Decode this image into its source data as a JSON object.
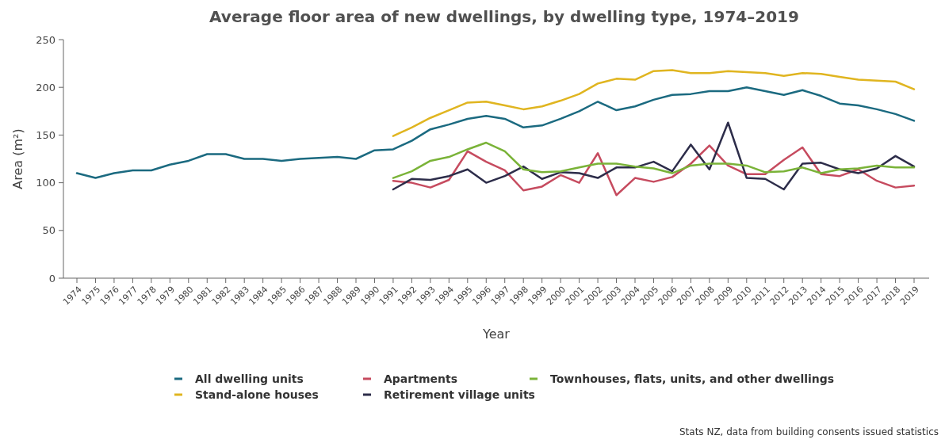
{
  "chart_data": {
    "type": "line",
    "title": "Average floor area of new dwellings, by dwelling type, 1974–2019",
    "xlabel": "Year",
    "ylabel": "Area (m²)",
    "annotations": [
      "Stats NZ, data from building consents issued statistics"
    ],
    "categories": [
      "1974",
      "1975",
      "1976",
      "1977",
      "1978",
      "1979",
      "1980",
      "1981",
      "1982",
      "1983",
      "1984",
      "1985",
      "1986",
      "1987",
      "1988",
      "1989",
      "1990",
      "1991",
      "1992",
      "1993",
      "1994",
      "1995",
      "1996",
      "1997",
      "1998",
      "1999",
      "2000",
      "2001",
      "2002",
      "2003",
      "2004",
      "2005",
      "2006",
      "2007",
      "2008",
      "2009",
      "2010",
      "2011",
      "2012",
      "2013",
      "2014",
      "2015",
      "2016",
      "2017",
      "2018",
      "2019"
    ],
    "ylim": [
      0,
      250
    ],
    "yticks": [
      0,
      50,
      100,
      150,
      200,
      250
    ],
    "grid": false,
    "legend": "bottom",
    "marker": "none",
    "line_style": "solid",
    "series": [
      {
        "name": "All dwelling units",
        "color": "#1b6a80",
        "values": [
          110,
          105,
          110,
          113,
          113,
          119,
          123,
          130,
          130,
          125,
          125,
          123,
          125,
          126,
          127,
          125,
          134,
          135,
          144,
          156,
          161,
          167,
          170,
          167,
          158,
          160,
          167,
          175,
          185,
          176,
          180,
          187,
          192,
          193,
          196,
          196,
          200,
          196,
          192,
          197,
          191,
          183,
          181,
          177,
          172,
          165
        ]
      },
      {
        "name": "Stand-alone houses",
        "color": "#e0b520",
        "values": [
          null,
          null,
          null,
          null,
          null,
          null,
          null,
          null,
          null,
          null,
          null,
          null,
          null,
          null,
          null,
          null,
          null,
          149,
          158,
          168,
          176,
          184,
          185,
          181,
          177,
          180,
          186,
          193,
          204,
          209,
          208,
          217,
          218,
          215,
          215,
          217,
          216,
          215,
          212,
          215,
          214,
          211,
          208,
          207,
          206,
          198
        ]
      },
      {
        "name": "Apartments",
        "color": "#c64b5f",
        "values": [
          null,
          null,
          null,
          null,
          null,
          null,
          null,
          null,
          null,
          null,
          null,
          null,
          null,
          null,
          null,
          null,
          null,
          102,
          100,
          95,
          103,
          133,
          122,
          113,
          92,
          96,
          108,
          100,
          131,
          87,
          105,
          101,
          106,
          120,
          139,
          118,
          109,
          109,
          124,
          137,
          109,
          107,
          114,
          102,
          95,
          97
        ]
      },
      {
        "name": "Retirement village units",
        "color": "#2d2d4a",
        "values": [
          null,
          null,
          null,
          null,
          null,
          null,
          null,
          null,
          null,
          null,
          null,
          null,
          null,
          null,
          null,
          null,
          null,
          93,
          104,
          103,
          107,
          114,
          100,
          107,
          117,
          104,
          111,
          110,
          105,
          116,
          116,
          122,
          112,
          140,
          114,
          163,
          105,
          104,
          93,
          120,
          121,
          114,
          110,
          115,
          128,
          117
        ]
      },
      {
        "name": "Townhouses, flats, units, and other dwellings",
        "color": "#7ab338",
        "values": [
          null,
          null,
          null,
          null,
          null,
          null,
          null,
          null,
          null,
          null,
          null,
          null,
          null,
          null,
          null,
          null,
          null,
          105,
          112,
          123,
          127,
          135,
          142,
          133,
          114,
          111,
          112,
          116,
          120,
          120,
          117,
          115,
          110,
          118,
          120,
          120,
          118,
          111,
          112,
          116,
          110,
          114,
          115,
          118,
          116,
          116
        ]
      }
    ]
  }
}
